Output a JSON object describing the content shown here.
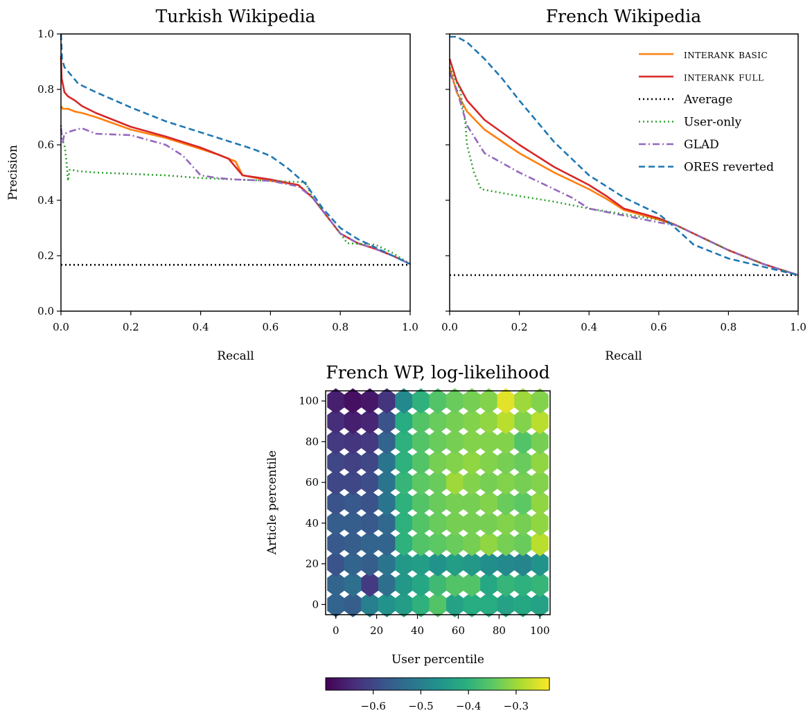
{
  "chart_data": [
    {
      "type": "line",
      "title": "Turkish Wikipedia",
      "xlabel": "Recall",
      "ylabel": "Precision",
      "xlim": [
        0,
        1
      ],
      "ylim": [
        0,
        1
      ],
      "xticks": [
        "0.0",
        "0.2",
        "0.4",
        "0.6",
        "0.8",
        "1.0"
      ],
      "yticks": [
        "0.0",
        "0.2",
        "0.4",
        "0.6",
        "0.8",
        "1.0"
      ],
      "series": [
        {
          "name": "INTERANK basic",
          "color": "#ff7f0e",
          "style": "solid",
          "x": [
            0.0,
            0.005,
            0.02,
            0.04,
            0.06,
            0.1,
            0.2,
            0.3,
            0.4,
            0.45,
            0.5,
            0.52,
            0.6,
            0.68,
            0.72,
            0.8,
            0.85,
            0.9,
            0.95,
            1.0
          ],
          "y": [
            0.74,
            0.73,
            0.73,
            0.72,
            0.715,
            0.7,
            0.655,
            0.625,
            0.585,
            0.565,
            0.54,
            0.49,
            0.47,
            0.455,
            0.41,
            0.28,
            0.245,
            0.225,
            0.2,
            0.17
          ]
        },
        {
          "name": "INTERANK full",
          "color": "#d62728",
          "style": "solid",
          "x": [
            0.0,
            0.002,
            0.01,
            0.02,
            0.04,
            0.06,
            0.1,
            0.2,
            0.3,
            0.4,
            0.48,
            0.52,
            0.6,
            0.68,
            0.72,
            0.8,
            0.85,
            0.9,
            0.95,
            1.0
          ],
          "y": [
            0.92,
            0.84,
            0.79,
            0.775,
            0.76,
            0.74,
            0.715,
            0.665,
            0.63,
            0.59,
            0.55,
            0.49,
            0.475,
            0.455,
            0.41,
            0.28,
            0.245,
            0.225,
            0.2,
            0.17
          ]
        },
        {
          "name": "Average",
          "color": "#000000",
          "style": "dotted",
          "x": [
            0.0,
            1.0
          ],
          "y": [
            0.167,
            0.167
          ]
        },
        {
          "name": "User-only",
          "color": "#2ca02c",
          "style": "dotted",
          "x": [
            0.0,
            0.003,
            0.01,
            0.015,
            0.02,
            0.025,
            0.03,
            0.05,
            0.1,
            0.2,
            0.3,
            0.4,
            0.5,
            0.6,
            0.7,
            0.72,
            0.8,
            0.82,
            0.9,
            0.95,
            1.0
          ],
          "y": [
            0.67,
            0.62,
            0.6,
            0.55,
            0.47,
            0.51,
            0.51,
            0.505,
            0.5,
            0.495,
            0.49,
            0.48,
            0.475,
            0.47,
            0.465,
            0.41,
            0.28,
            0.245,
            0.24,
            0.21,
            0.17
          ]
        },
        {
          "name": "GLAD",
          "color": "#9467bd",
          "style": "dashdot",
          "x": [
            0.0,
            0.005,
            0.01,
            0.03,
            0.06,
            0.1,
            0.2,
            0.3,
            0.35,
            0.4,
            0.45,
            0.5,
            0.6,
            0.68,
            0.72,
            0.8,
            0.85,
            0.9,
            0.95,
            1.0
          ],
          "y": [
            0.66,
            0.61,
            0.64,
            0.65,
            0.66,
            0.64,
            0.635,
            0.6,
            0.56,
            0.49,
            0.48,
            0.475,
            0.47,
            0.45,
            0.41,
            0.28,
            0.245,
            0.225,
            0.2,
            0.17
          ]
        },
        {
          "name": "ORES reverted",
          "color": "#1f77b4",
          "style": "dashed",
          "x": [
            0.0,
            0.003,
            0.01,
            0.05,
            0.1,
            0.2,
            0.3,
            0.4,
            0.5,
            0.55,
            0.6,
            0.65,
            0.7,
            0.75,
            0.8,
            0.85,
            0.9,
            0.95,
            1.0
          ],
          "y": [
            1.0,
            0.91,
            0.88,
            0.82,
            0.79,
            0.735,
            0.685,
            0.645,
            0.605,
            0.585,
            0.56,
            0.515,
            0.46,
            0.37,
            0.3,
            0.26,
            0.23,
            0.2,
            0.17
          ]
        }
      ]
    },
    {
      "type": "line",
      "title": "French Wikipedia",
      "xlabel": "Recall",
      "xlim": [
        0,
        1
      ],
      "ylim": [
        0,
        1
      ],
      "xticks": [
        "0.0",
        "0.2",
        "0.4",
        "0.6",
        "0.8",
        "1.0"
      ],
      "legend": {
        "position": "top-right",
        "entries": [
          "INTERANK basic",
          "INTERANK full",
          "Average",
          "User-only",
          "GLAD",
          "ORES reverted"
        ]
      },
      "series": [
        {
          "name": "INTERANK basic",
          "color": "#ff7f0e",
          "style": "solid",
          "x": [
            0.0,
            0.02,
            0.05,
            0.1,
            0.2,
            0.3,
            0.4,
            0.45,
            0.5,
            0.6,
            0.65,
            0.7,
            0.8,
            0.9,
            1.0
          ],
          "y": [
            0.88,
            0.79,
            0.72,
            0.655,
            0.57,
            0.5,
            0.44,
            0.405,
            0.365,
            0.33,
            0.31,
            0.28,
            0.22,
            0.17,
            0.13
          ]
        },
        {
          "name": "INTERANK full",
          "color": "#d62728",
          "style": "solid",
          "x": [
            0.0,
            0.02,
            0.05,
            0.1,
            0.2,
            0.3,
            0.4,
            0.45,
            0.5,
            0.6,
            0.65,
            0.7,
            0.8,
            0.9,
            1.0
          ],
          "y": [
            0.91,
            0.83,
            0.76,
            0.69,
            0.6,
            0.52,
            0.455,
            0.415,
            0.37,
            0.335,
            0.31,
            0.28,
            0.22,
            0.17,
            0.13
          ]
        },
        {
          "name": "Average",
          "color": "#000000",
          "style": "dotted",
          "x": [
            0.0,
            1.0
          ],
          "y": [
            0.13,
            0.13
          ]
        },
        {
          "name": "User-only",
          "color": "#2ca02c",
          "style": "dotted",
          "x": [
            0.0,
            0.01,
            0.03,
            0.045,
            0.05,
            0.07,
            0.09,
            0.2,
            0.3,
            0.4,
            0.5,
            0.6,
            0.65,
            0.7,
            0.8,
            0.9,
            1.0
          ],
          "y": [
            0.88,
            0.85,
            0.8,
            0.68,
            0.6,
            0.5,
            0.44,
            0.415,
            0.395,
            0.37,
            0.35,
            0.33,
            0.31,
            0.28,
            0.22,
            0.17,
            0.13
          ]
        },
        {
          "name": "GLAD",
          "color": "#9467bd",
          "style": "dashdot",
          "x": [
            0.0,
            0.02,
            0.05,
            0.1,
            0.2,
            0.3,
            0.35,
            0.4,
            0.5,
            0.6,
            0.65,
            0.7,
            0.8,
            0.9,
            1.0
          ],
          "y": [
            0.86,
            0.8,
            0.67,
            0.57,
            0.5,
            0.44,
            0.41,
            0.37,
            0.345,
            0.32,
            0.31,
            0.28,
            0.22,
            0.17,
            0.13
          ]
        },
        {
          "name": "ORES reverted",
          "color": "#1f77b4",
          "style": "dashed",
          "x": [
            0.0,
            0.02,
            0.05,
            0.1,
            0.15,
            0.2,
            0.3,
            0.4,
            0.5,
            0.6,
            0.63,
            0.7,
            0.8,
            0.9,
            1.0
          ],
          "y": [
            0.99,
            0.99,
            0.97,
            0.91,
            0.84,
            0.76,
            0.61,
            0.49,
            0.41,
            0.35,
            0.32,
            0.24,
            0.19,
            0.16,
            0.13
          ]
        }
      ]
    },
    {
      "type": "heatmap",
      "title": "French WP, log-likelihood",
      "xlabel": "User percentile",
      "ylabel": "Article percentile",
      "xlim": [
        -5,
        105
      ],
      "ylim": [
        -5,
        105
      ],
      "xticks": [
        "0",
        "20",
        "40",
        "60",
        "80",
        "100"
      ],
      "yticks": [
        "0",
        "20",
        "40",
        "60",
        "80",
        "100"
      ],
      "colormap": "viridis",
      "colorbar": {
        "vmin": -0.7,
        "vmax": -0.23,
        "ticks": [
          -0.6,
          -0.5,
          -0.4,
          -0.3
        ],
        "tick_labels": [
          "−0.6",
          "−0.5",
          "−0.4",
          "−0.3"
        ]
      },
      "grid_columns": 13,
      "grid_rows": 11,
      "x_values": [
        0,
        8.33,
        16.67,
        25,
        33.33,
        41.67,
        50,
        58.33,
        66.67,
        75,
        83.33,
        91.67,
        100
      ],
      "y_values": [
        0,
        10,
        20,
        30,
        40,
        50,
        60,
        70,
        80,
        90,
        100
      ],
      "values": [
        [
          -0.55,
          -0.56,
          -0.5,
          -0.46,
          -0.44,
          -0.4,
          -0.36,
          -0.43,
          -0.41,
          -0.41,
          -0.43,
          -0.42,
          -0.43
        ],
        [
          -0.55,
          -0.53,
          -0.62,
          -0.53,
          -0.45,
          -0.42,
          -0.38,
          -0.36,
          -0.36,
          -0.42,
          -0.39,
          -0.4,
          -0.39
        ],
        [
          -0.58,
          -0.55,
          -0.56,
          -0.52,
          -0.45,
          -0.44,
          -0.46,
          -0.44,
          -0.45,
          -0.47,
          -0.48,
          -0.49,
          -0.46
        ],
        [
          -0.57,
          -0.56,
          -0.55,
          -0.55,
          -0.4,
          -0.36,
          -0.35,
          -0.34,
          -0.33,
          -0.31,
          -0.33,
          -0.34,
          -0.28
        ],
        [
          -0.56,
          -0.56,
          -0.57,
          -0.54,
          -0.4,
          -0.36,
          -0.34,
          -0.33,
          -0.33,
          -0.33,
          -0.32,
          -0.33,
          -0.31
        ],
        [
          -0.58,
          -0.57,
          -0.58,
          -0.52,
          -0.4,
          -0.36,
          -0.34,
          -0.33,
          -0.33,
          -0.32,
          -0.34,
          -0.35,
          -0.31
        ],
        [
          -0.6,
          -0.6,
          -0.59,
          -0.52,
          -0.39,
          -0.35,
          -0.34,
          -0.3,
          -0.32,
          -0.33,
          -0.32,
          -0.33,
          -0.32
        ],
        [
          -0.6,
          -0.61,
          -0.6,
          -0.52,
          -0.4,
          -0.36,
          -0.33,
          -0.32,
          -0.31,
          -0.32,
          -0.33,
          -0.34,
          -0.31
        ],
        [
          -0.62,
          -0.63,
          -0.62,
          -0.55,
          -0.4,
          -0.36,
          -0.34,
          -0.33,
          -0.32,
          -0.32,
          -0.32,
          -0.36,
          -0.33
        ],
        [
          -0.64,
          -0.66,
          -0.65,
          -0.58,
          -0.41,
          -0.36,
          -0.34,
          -0.33,
          -0.32,
          -0.31,
          -0.28,
          -0.32,
          -0.28
        ],
        [
          -0.66,
          -0.68,
          -0.67,
          -0.63,
          -0.48,
          -0.4,
          -0.36,
          -0.34,
          -0.33,
          -0.32,
          -0.25,
          -0.3,
          -0.32
        ]
      ]
    }
  ]
}
